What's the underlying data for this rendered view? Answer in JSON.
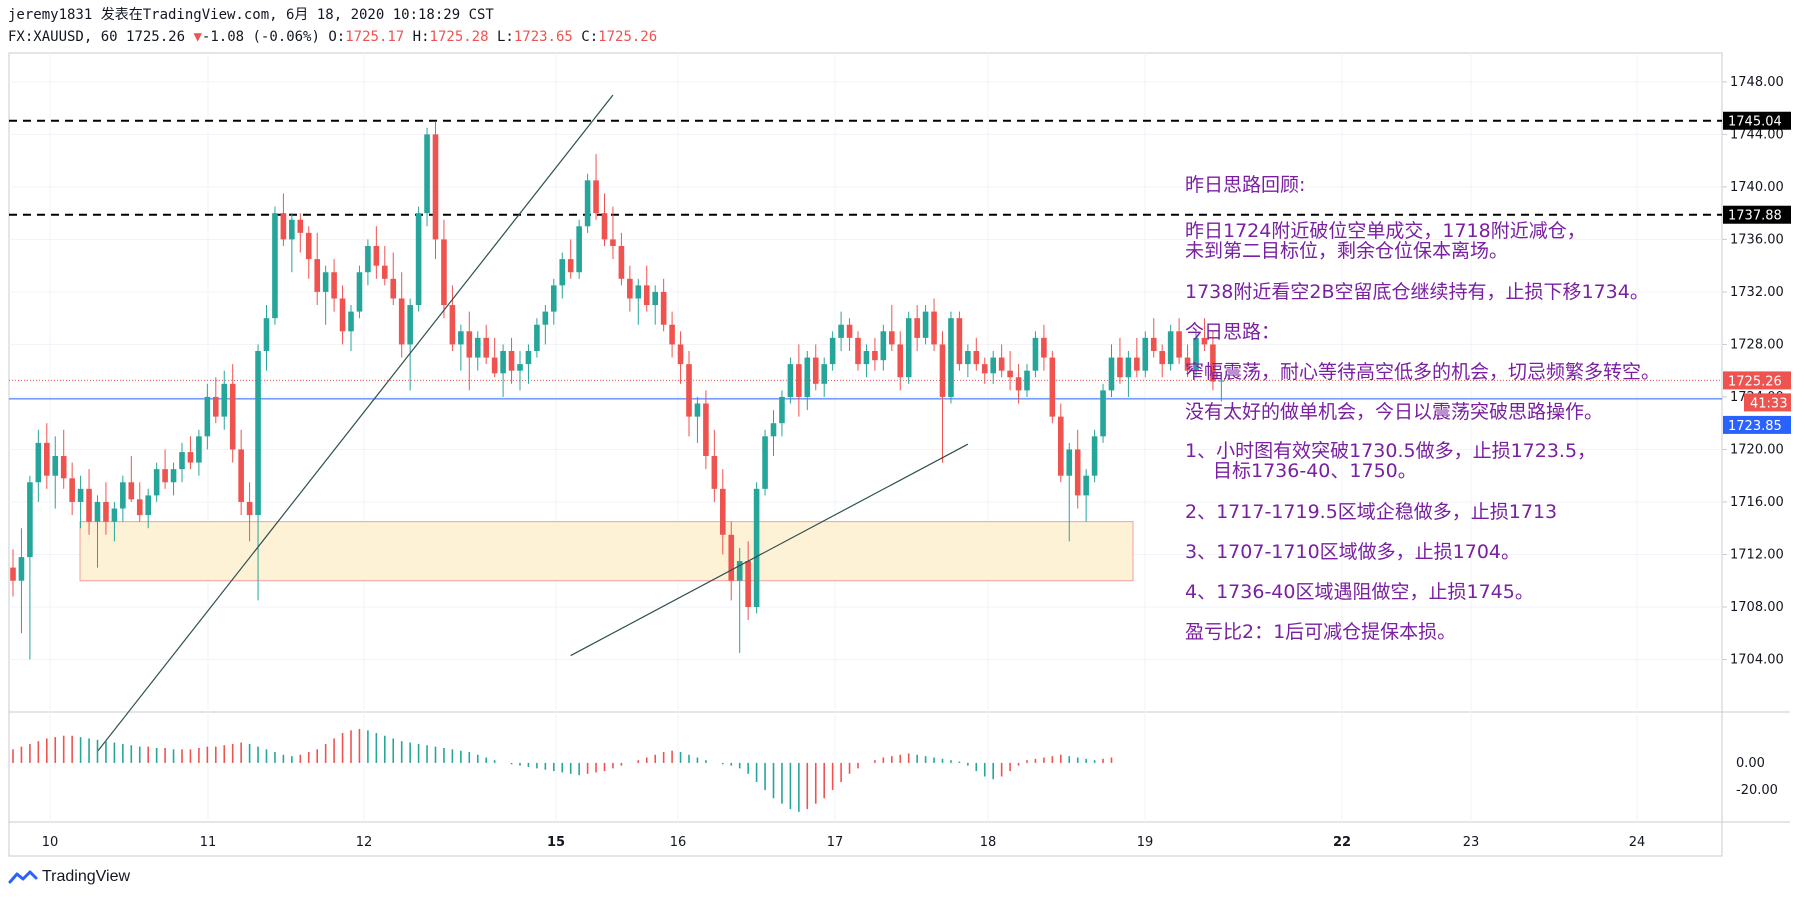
{
  "header": {
    "line1": "jeremy1831 发表在TradingView.com, 6月 18, 2020 10:18:29 CST",
    "symbol": "FX:XAUUSD, 60",
    "last": "1725.26",
    "down_arrow": "▼",
    "change": "-1.08 (-0.06%)",
    "o_label": "O:",
    "o_val": "1725.17",
    "h_label": "H:",
    "h_val": "1725.28",
    "l_label": "L:",
    "l_val": "1723.65",
    "c_label": "C:",
    "c_val": "1725.26"
  },
  "price_axis": {
    "ticks": [
      "1748.00",
      "1744.00",
      "1740.00",
      "1736.00",
      "1732.00",
      "1728.00",
      "1724.00",
      "1720.00",
      "1716.00",
      "1712.00",
      "1708.00",
      "1704.00"
    ],
    "tick_values": [
      1748,
      1744,
      1740,
      1736,
      1732,
      1728,
      1724,
      1720,
      1716,
      1712,
      1708,
      1704
    ],
    "tag_top_resistance": "1745.04",
    "tag_resistance_2": "1737.88",
    "tag_last_price": "1725.26",
    "tag_countdown": "41:33",
    "tag_blue_line": "1723.85",
    "osc_ticks": [
      "0.00",
      "-20.00"
    ]
  },
  "time_axis": {
    "labels": [
      "10",
      "11",
      "12",
      "15",
      "16",
      "17",
      "18",
      "19",
      "22",
      "23",
      "24"
    ],
    "bold": [
      "15",
      "22"
    ]
  },
  "notes": [
    "昨日思路回顾:",
    "昨日1724附近破位空单成交，1718附近减仓，",
    "未到第二目标位，剩余仓位保本离场。",
    "1738附近看空2B空留底仓继续持有，止损下移1734。",
    "今日思路：",
    "窄幅震荡，耐心等待高空低多的机会，切忌频繁多转空。",
    "没有太好的做单机会，今日以震荡突破思路操作。",
    "1、小时图有效突破1730.5做多，止损1723.5，",
    "目标1736-40、1750。",
    "2、1717-1719.5区域企稳做多，止损1713",
    "3、1707-1710区域做多，止损1704。",
    "4、1736-40区域遇阻做空，止损1745。",
    "盈亏比2：1后可减仓提保本损。"
  ],
  "footer": {
    "brand": "TradingView"
  },
  "colors": {
    "up": "#26a69a",
    "down": "#ef5350",
    "annotation": "#7b1fa2",
    "blue_line": "#2962ff",
    "zone_fill": "#fdf2d6",
    "zone_border": "#f0a0a0"
  },
  "chart_data": {
    "type": "candlestick",
    "symbol": "FX:XAUUSD",
    "interval": "60",
    "ylim": [
      1700,
      1750.2
    ],
    "horizontal_levels": [
      {
        "price": 1745.04,
        "style": "dashed"
      },
      {
        "price": 1737.88,
        "style": "dashed"
      },
      {
        "price": 1723.85,
        "style": "solid-blue"
      },
      {
        "price": 1725.26,
        "style": "dotted-last"
      }
    ],
    "zone": {
      "top": 1714.5,
      "bottom": 1710.0
    },
    "candles": [
      [
        1711.0,
        1712.4,
        1708.8,
        1710.0
      ],
      [
        1710.0,
        1714.0,
        1706.0,
        1711.8
      ],
      [
        1711.8,
        1718.0,
        1704.0,
        1717.5
      ],
      [
        1717.5,
        1721.5,
        1716.0,
        1720.5
      ],
      [
        1720.5,
        1722.0,
        1717.0,
        1718.0
      ],
      [
        1718.0,
        1721.0,
        1715.5,
        1719.5
      ],
      [
        1719.5,
        1721.5,
        1717.0,
        1717.8
      ],
      [
        1717.8,
        1719.0,
        1715.0,
        1716.0
      ],
      [
        1716.0,
        1718.0,
        1714.0,
        1717.0
      ],
      [
        1717.0,
        1718.5,
        1713.5,
        1714.5
      ],
      [
        1714.5,
        1716.5,
        1711.0,
        1716.0
      ],
      [
        1716.0,
        1717.5,
        1713.5,
        1714.5
      ],
      [
        1714.5,
        1716.0,
        1713.0,
        1715.5
      ],
      [
        1715.5,
        1718.0,
        1714.5,
        1717.5
      ],
      [
        1717.5,
        1719.5,
        1716.0,
        1716.2
      ],
      [
        1716.2,
        1717.5,
        1714.5,
        1715.0
      ],
      [
        1715.0,
        1717.0,
        1714.0,
        1716.5
      ],
      [
        1716.5,
        1719.0,
        1716.0,
        1718.5
      ],
      [
        1718.5,
        1720.0,
        1717.0,
        1717.5
      ],
      [
        1717.5,
        1719.0,
        1716.5,
        1718.5
      ],
      [
        1718.5,
        1720.5,
        1717.5,
        1719.8
      ],
      [
        1719.8,
        1721.0,
        1718.5,
        1719.0
      ],
      [
        1719.0,
        1721.5,
        1718.0,
        1721.0
      ],
      [
        1721.0,
        1725.0,
        1720.0,
        1724.0
      ],
      [
        1724.0,
        1725.5,
        1722.0,
        1722.5
      ],
      [
        1722.5,
        1726.0,
        1721.5,
        1725.0
      ],
      [
        1725.0,
        1726.5,
        1719.0,
        1720.0
      ],
      [
        1720.0,
        1721.5,
        1715.0,
        1716.0
      ],
      [
        1716.0,
        1717.5,
        1713.0,
        1715.0
      ],
      [
        1715.0,
        1728.0,
        1708.5,
        1727.5
      ],
      [
        1727.5,
        1731.0,
        1726.0,
        1730.0
      ],
      [
        1730.0,
        1738.5,
        1729.5,
        1738.0
      ],
      [
        1738.0,
        1739.5,
        1735.5,
        1736.0
      ],
      [
        1736.0,
        1738.0,
        1733.5,
        1737.5
      ],
      [
        1737.5,
        1738.0,
        1735.0,
        1736.5
      ],
      [
        1736.5,
        1737.0,
        1733.0,
        1734.5
      ],
      [
        1734.5,
        1736.5,
        1731.0,
        1732.0
      ],
      [
        1732.0,
        1734.0,
        1729.5,
        1733.5
      ],
      [
        1733.5,
        1734.5,
        1730.5,
        1731.5
      ],
      [
        1731.5,
        1732.5,
        1728.0,
        1729.0
      ],
      [
        1729.0,
        1731.0,
        1727.5,
        1730.5
      ],
      [
        1730.5,
        1734.0,
        1730.0,
        1733.5
      ],
      [
        1733.5,
        1736.0,
        1732.5,
        1735.5
      ],
      [
        1735.5,
        1737.0,
        1733.0,
        1734.0
      ],
      [
        1734.0,
        1735.5,
        1732.5,
        1733.0
      ],
      [
        1733.0,
        1735.0,
        1731.0,
        1731.5
      ],
      [
        1731.5,
        1733.5,
        1727.0,
        1728.0
      ],
      [
        1728.0,
        1731.5,
        1724.5,
        1731.0
      ],
      [
        1731.0,
        1738.5,
        1730.5,
        1738.0
      ],
      [
        1738.0,
        1744.5,
        1737.0,
        1744.0
      ],
      [
        1744.0,
        1745.0,
        1734.5,
        1736.0
      ],
      [
        1736.0,
        1737.5,
        1730.0,
        1731.0
      ],
      [
        1731.0,
        1732.5,
        1727.5,
        1728.0
      ],
      [
        1728.0,
        1729.5,
        1726.0,
        1729.0
      ],
      [
        1729.0,
        1730.5,
        1724.5,
        1727.0
      ],
      [
        1727.0,
        1729.0,
        1726.0,
        1728.5
      ],
      [
        1728.5,
        1729.5,
        1726.5,
        1727.0
      ],
      [
        1727.0,
        1728.5,
        1725.5,
        1725.8
      ],
      [
        1725.8,
        1728.0,
        1724.0,
        1727.5
      ],
      [
        1727.5,
        1728.5,
        1725.0,
        1726.0
      ],
      [
        1726.0,
        1727.5,
        1724.5,
        1726.5
      ],
      [
        1726.5,
        1728.0,
        1725.0,
        1727.5
      ],
      [
        1727.5,
        1730.0,
        1727.0,
        1729.5
      ],
      [
        1729.5,
        1731.0,
        1728.0,
        1730.5
      ],
      [
        1730.5,
        1733.0,
        1729.5,
        1732.5
      ],
      [
        1732.5,
        1735.0,
        1731.5,
        1734.5
      ],
      [
        1734.5,
        1736.0,
        1733.0,
        1733.5
      ],
      [
        1733.5,
        1737.5,
        1733.0,
        1737.0
      ],
      [
        1737.0,
        1741.0,
        1736.5,
        1740.5
      ],
      [
        1740.5,
        1742.5,
        1737.5,
        1738.0
      ],
      [
        1738.0,
        1739.5,
        1735.5,
        1736.0
      ],
      [
        1736.0,
        1738.5,
        1734.5,
        1735.5
      ],
      [
        1735.5,
        1736.5,
        1732.5,
        1733.0
      ],
      [
        1733.0,
        1734.0,
        1730.5,
        1731.5
      ],
      [
        1731.5,
        1733.0,
        1729.5,
        1732.5
      ],
      [
        1732.5,
        1734.0,
        1730.5,
        1731.0
      ],
      [
        1731.0,
        1732.5,
        1729.5,
        1732.0
      ],
      [
        1732.0,
        1733.0,
        1729.0,
        1729.5
      ],
      [
        1729.5,
        1730.5,
        1727.0,
        1728.0
      ],
      [
        1728.0,
        1729.0,
        1725.0,
        1726.5
      ],
      [
        1726.5,
        1727.5,
        1721.0,
        1722.5
      ],
      [
        1722.5,
        1724.0,
        1720.5,
        1723.5
      ],
      [
        1723.5,
        1724.5,
        1718.5,
        1719.5
      ],
      [
        1719.5,
        1721.5,
        1716.0,
        1717.0
      ],
      [
        1717.0,
        1718.5,
        1712.0,
        1713.5
      ],
      [
        1713.5,
        1714.5,
        1708.5,
        1710.0
      ],
      [
        1710.0,
        1712.5,
        1704.5,
        1711.5
      ],
      [
        1711.5,
        1713.0,
        1707.0,
        1708.0
      ],
      [
        1708.0,
        1717.5,
        1707.5,
        1717.0
      ],
      [
        1717.0,
        1721.5,
        1716.5,
        1721.0
      ],
      [
        1721.0,
        1723.0,
        1719.5,
        1722.0
      ],
      [
        1722.0,
        1724.5,
        1721.0,
        1724.0
      ],
      [
        1724.0,
        1727.0,
        1723.5,
        1726.5
      ],
      [
        1726.5,
        1728.0,
        1722.5,
        1724.0
      ],
      [
        1724.0,
        1727.5,
        1723.0,
        1727.0
      ],
      [
        1727.0,
        1728.0,
        1724.5,
        1725.0
      ],
      [
        1725.0,
        1727.0,
        1724.0,
        1726.5
      ],
      [
        1726.5,
        1729.0,
        1726.0,
        1728.5
      ],
      [
        1728.5,
        1730.5,
        1727.5,
        1729.5
      ],
      [
        1729.5,
        1730.0,
        1727.5,
        1728.5
      ],
      [
        1728.5,
        1729.0,
        1726.0,
        1726.5
      ],
      [
        1726.5,
        1728.0,
        1725.5,
        1727.5
      ],
      [
        1727.5,
        1728.5,
        1726.0,
        1726.8
      ],
      [
        1726.8,
        1729.5,
        1726.0,
        1729.0
      ],
      [
        1729.0,
        1731.0,
        1727.5,
        1728.0
      ],
      [
        1728.0,
        1729.0,
        1724.5,
        1725.5
      ],
      [
        1725.5,
        1730.5,
        1725.0,
        1730.0
      ],
      [
        1730.0,
        1731.0,
        1727.5,
        1728.5
      ],
      [
        1728.5,
        1731.0,
        1728.0,
        1730.5
      ],
      [
        1730.5,
        1731.5,
        1727.5,
        1728.0
      ],
      [
        1728.0,
        1729.0,
        1719.0,
        1724.0
      ],
      [
        1724.0,
        1730.5,
        1723.5,
        1730.0
      ],
      [
        1730.0,
        1730.5,
        1726.0,
        1726.5
      ],
      [
        1726.5,
        1728.0,
        1725.5,
        1727.5
      ],
      [
        1727.5,
        1728.5,
        1726.0,
        1726.5
      ],
      [
        1726.5,
        1727.0,
        1725.0,
        1725.8
      ],
      [
        1725.8,
        1727.5,
        1725.0,
        1727.0
      ],
      [
        1727.0,
        1728.0,
        1725.5,
        1726.0
      ],
      [
        1726.0,
        1727.5,
        1724.5,
        1725.5
      ],
      [
        1725.5,
        1726.5,
        1723.5,
        1724.5
      ],
      [
        1724.5,
        1726.5,
        1724.0,
        1726.0
      ],
      [
        1726.0,
        1729.0,
        1725.5,
        1728.5
      ],
      [
        1728.5,
        1729.5,
        1726.0,
        1727.0
      ],
      [
        1727.0,
        1727.5,
        1722.0,
        1722.5
      ],
      [
        1722.5,
        1723.5,
        1717.5,
        1718.0
      ],
      [
        1718.0,
        1720.5,
        1713.0,
        1720.0
      ],
      [
        1720.0,
        1721.5,
        1715.5,
        1716.5
      ],
      [
        1716.5,
        1718.5,
        1714.5,
        1718.0
      ],
      [
        1718.0,
        1721.5,
        1717.5,
        1721.0
      ],
      [
        1721.0,
        1725.0,
        1720.5,
        1724.5
      ],
      [
        1724.5,
        1728.0,
        1724.0,
        1727.0
      ],
      [
        1727.0,
        1728.5,
        1725.0,
        1725.5
      ],
      [
        1725.5,
        1727.5,
        1724.0,
        1727.0
      ],
      [
        1727.0,
        1728.5,
        1725.5,
        1726.0
      ],
      [
        1726.0,
        1729.0,
        1725.5,
        1728.5
      ],
      [
        1728.5,
        1730.0,
        1727.0,
        1727.5
      ],
      [
        1727.5,
        1728.0,
        1725.5,
        1726.5
      ],
      [
        1726.5,
        1729.5,
        1726.0,
        1729.0
      ],
      [
        1729.0,
        1730.0,
        1726.5,
        1727.0
      ],
      [
        1727.0,
        1728.0,
        1725.5,
        1726.0
      ],
      [
        1726.0,
        1729.0,
        1725.5,
        1728.5
      ],
      [
        1728.5,
        1730.0,
        1727.5,
        1728.0
      ],
      [
        1728.0,
        1729.0,
        1724.5,
        1725.17
      ],
      [
        1725.17,
        1725.28,
        1723.65,
        1725.26
      ]
    ],
    "trendlines": [
      {
        "from": {
          "bar": 10,
          "price": 1697.0
        },
        "to": {
          "bar": 71,
          "price": 1747.0
        }
      },
      {
        "from": {
          "bar": 66,
          "price": 1704.3
        },
        "to": {
          "bar": 113,
          "price": 1720.4
        }
      }
    ],
    "oscillator": {
      "ylim": [
        -42,
        36
      ],
      "values": [
        10,
        12,
        14,
        16,
        18,
        19,
        20,
        20,
        19,
        18,
        17,
        16,
        15,
        14,
        13,
        12,
        12,
        11,
        11,
        10,
        10,
        10,
        11,
        12,
        12,
        13,
        14,
        15,
        14,
        12,
        10,
        8,
        6,
        5,
        6,
        8,
        10,
        14,
        18,
        22,
        24,
        25,
        24,
        22,
        20,
        18,
        16,
        15,
        14,
        13,
        12,
        11,
        10,
        9,
        8,
        6,
        4,
        2,
        0,
        -1,
        -2,
        -3,
        -4,
        -5,
        -6,
        -7,
        -8,
        -9,
        -8,
        -7,
        -6,
        -4,
        -2,
        0,
        2,
        4,
        6,
        8,
        9,
        8,
        6,
        4,
        2,
        0,
        -1,
        -2,
        -4,
        -8,
        -14,
        -20,
        -26,
        -30,
        -34,
        -36,
        -34,
        -30,
        -26,
        -20,
        -14,
        -8,
        -4,
        0,
        2,
        4,
        5,
        6,
        7,
        6,
        5,
        4,
        3,
        2,
        1,
        -2,
        -6,
        -10,
        -12,
        -10,
        -6,
        -2,
        2,
        3,
        4,
        5,
        6,
        5,
        4,
        3,
        2,
        3,
        4
      ]
    }
  }
}
